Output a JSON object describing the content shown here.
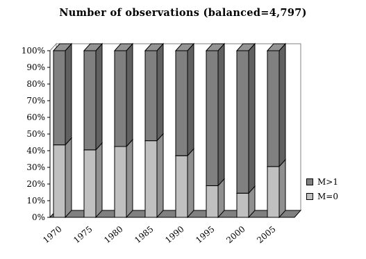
{
  "chart_data": {
    "type": "bar",
    "stacked": true,
    "three_d": true,
    "title": "Number of observations (balanced=4,797)",
    "categories": [
      "1970",
      "1975",
      "1980",
      "1985",
      "1990",
      "1995",
      "2000",
      "2005"
    ],
    "y_tick_labels": [
      "0%",
      "10%",
      "20%",
      "30%",
      "40%",
      "50%",
      "60%",
      "70%",
      "80%",
      "90%",
      "100%"
    ],
    "ylim": [
      0,
      100
    ],
    "grid": false,
    "legend_position": "right",
    "series": [
      {
        "name": "M=0",
        "color": "#c0c0c0",
        "values": [
          43.5,
          40.5,
          42.5,
          46,
          37,
          19,
          14.5,
          30.5
        ]
      },
      {
        "name": "M>1",
        "color": "#808080",
        "values": [
          56.5,
          59.5,
          57.5,
          54,
          63,
          81,
          85.5,
          69.5
        ]
      }
    ],
    "legend_order": [
      "M>1",
      "M=0"
    ]
  }
}
